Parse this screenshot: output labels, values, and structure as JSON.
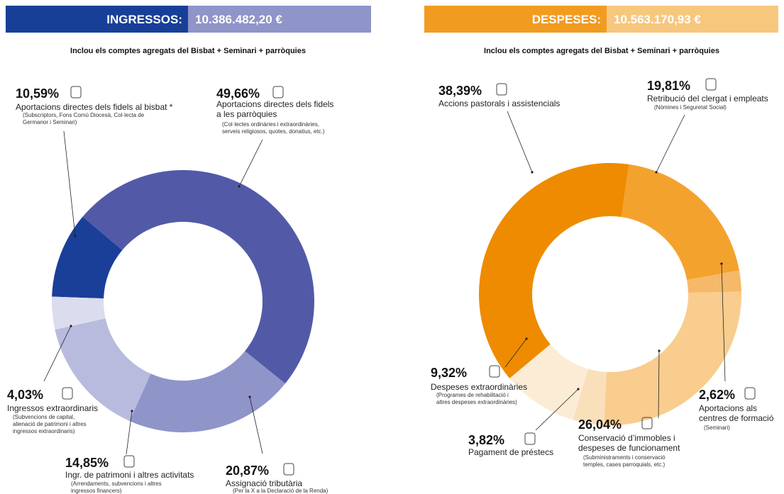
{
  "chart_data": [
    {
      "type": "donut",
      "title": "INGRESSOS:",
      "total": "10.386.482,20 €",
      "subtitle": "Inclou els comptes agregats del Bisbat + Seminari + parròquies",
      "header_colors": [
        "#183f98",
        "#8f94c9"
      ],
      "values": [
        10.59,
        49.66,
        20.87,
        14.85,
        4.03
      ],
      "value_labels": [
        "10,59%",
        "49,66%",
        "20,87%",
        "14,85%",
        "4,03%"
      ],
      "colors": [
        "#1a3f99",
        "#525aa8",
        "#8f95c9",
        "#b8bbdd",
        "#dcdcef"
      ],
      "categories": [
        [
          "Aportacions directes dels fidels al bisbat *"
        ],
        [
          "Aportacions directes dels fidels",
          "a les parròquies"
        ],
        [
          "Assignació tributària"
        ],
        [
          "Ingr. de patrimoni i altres activitats"
        ],
        [
          "Ingressos extraordinaris"
        ]
      ],
      "notes": [
        [
          "(Subscriptors, Fons Comú Diocesà, Col·lecta de",
          "Germanor i Seminari)"
        ],
        [
          "(Col·lectes ordinàries i extraordinàries,",
          "serveis religiosos, quotes, donatius, etc.)"
        ],
        [
          "(Per la X a la Declaració de la Renda)"
        ],
        [
          "(Arrendaments, subvencions i altres",
          "ingressos financers)"
        ],
        [
          "(Subvencions de capital,",
          "alienació de patrimoni i altres",
          "ingressos extraordinaris)"
        ]
      ]
    },
    {
      "type": "donut",
      "title": "DESPESES:",
      "total": "10.563.170,93 €",
      "subtitle": "Inclou els comptes agregats del Bisbat + Seminari + parròquies",
      "header_colors": [
        "#f29b21",
        "#f8c77e"
      ],
      "values": [
        38.39,
        19.81,
        2.62,
        26.04,
        3.82,
        9.32
      ],
      "value_labels": [
        "38,39%",
        "19,81%",
        "2,62%",
        "26,04%",
        "3,82%",
        "9,32%"
      ],
      "colors": [
        "#ee8b00",
        "#f4a22e",
        "#f6b869",
        "#f8cd8e",
        "#fadfbb",
        "#fcecd6"
      ],
      "categories": [
        [
          "Accions pastorals i assistencials"
        ],
        [
          "Retribució del clergat i empleats"
        ],
        [
          "Aportacions als",
          "centres de formació"
        ],
        [
          "Conservació d’immobles i",
          "despeses de funcionament"
        ],
        [
          "Pagament de préstecs"
        ],
        [
          "Despeses extraordinàries"
        ]
      ],
      "notes": [
        [],
        [
          "(Nòmines i Seguretat Social)"
        ],
        [
          "(Seminari)"
        ],
        [
          "(Subministraments i conservació",
          "temples, cases parroquials, etc.)"
        ],
        [],
        [
          "(Programes de rehabilitació i",
          "altres despeses extraordinàries)"
        ]
      ]
    }
  ]
}
